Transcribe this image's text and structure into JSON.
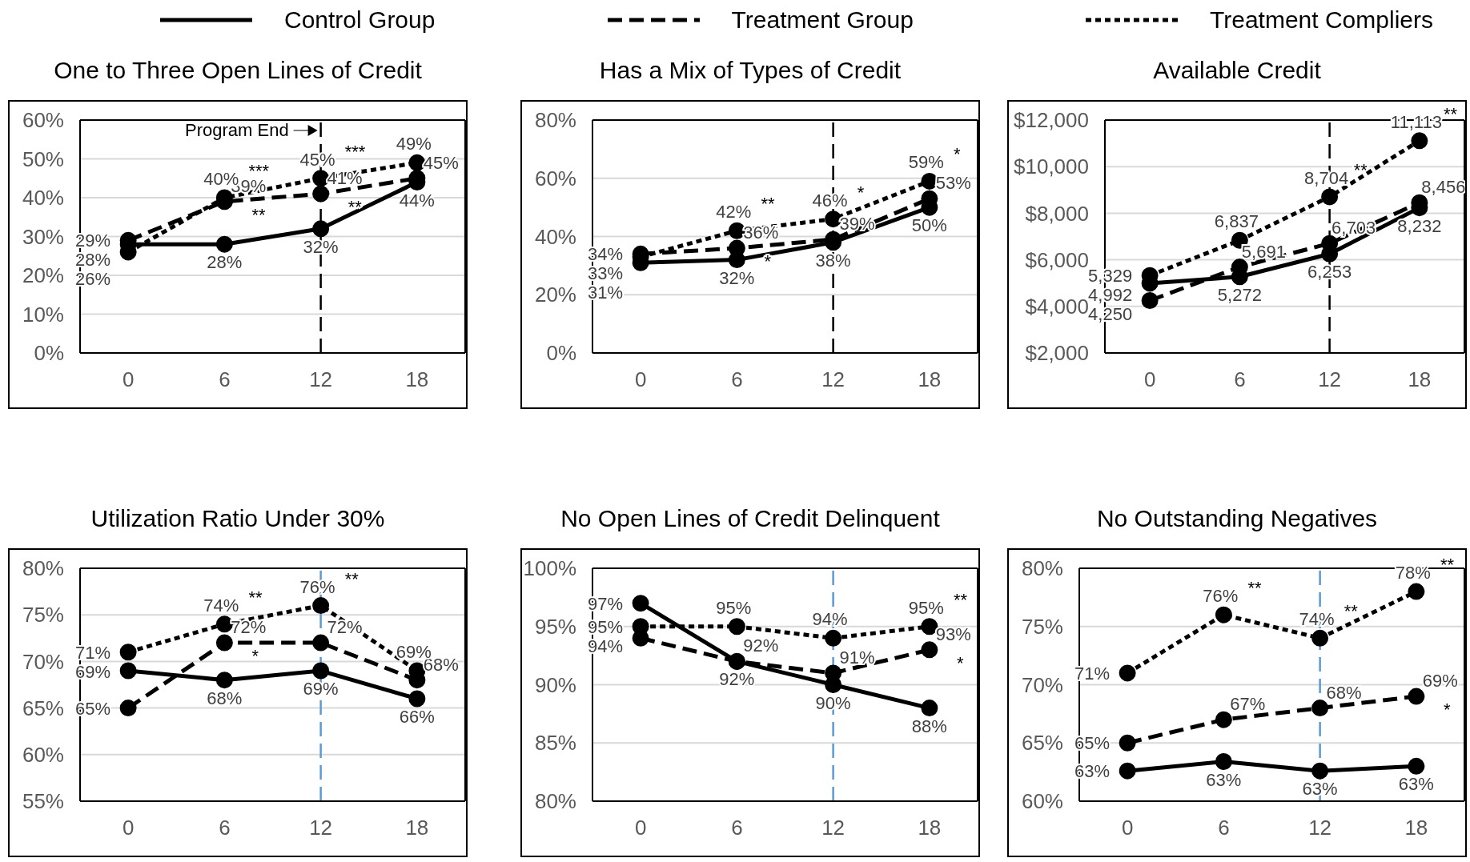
{
  "chart_data": [
    {
      "type": "line",
      "title": "One to Three Open Lines of Credit",
      "x": [
        0,
        6,
        12,
        18
      ],
      "xlim": [
        -3,
        21
      ],
      "xticks": [
        0,
        6,
        12,
        18
      ],
      "ylim": [
        0,
        60
      ],
      "yticks": [
        {
          "value": 0,
          "label": "0%"
        },
        {
          "value": 10,
          "label": "10%"
        },
        {
          "value": 20,
          "label": "20%"
        },
        {
          "value": 30,
          "label": "30%"
        },
        {
          "value": 40,
          "label": "40%"
        },
        {
          "value": 50,
          "label": "50%"
        },
        {
          "value": 60,
          "label": "60%"
        }
      ],
      "grid": "y",
      "marker": "circle",
      "legend": "top",
      "series": [
        {
          "name": "Control Group",
          "color": "#000000",
          "line_style": "solid",
          "values": [
            28,
            28,
            32,
            44
          ],
          "value_labels": [
            "28%",
            "28%",
            "32%",
            "44%"
          ]
        },
        {
          "name": "Treatment Group",
          "color": "#000000",
          "line_style": "dashed",
          "values": [
            29,
            39,
            41,
            45
          ],
          "value_labels": [
            "29%",
            "39%",
            "41%",
            "45%"
          ]
        },
        {
          "name": "Treatment Compliers",
          "color": "#000000",
          "line_style": "dotted",
          "values": [
            26,
            40,
            45,
            49
          ],
          "value_labels": [
            "26%",
            "40%",
            "45%",
            "49%"
          ]
        }
      ],
      "ref_lines": [
        {
          "axis": "x",
          "value": 12,
          "label": "Program End",
          "color": "#000000",
          "line_style": "dashed"
        }
      ],
      "annotations": [
        {
          "text": "***",
          "x": 6,
          "y": 40
        },
        {
          "text": "**",
          "x": 6,
          "y": 39
        },
        {
          "text": "***",
          "x": 12,
          "y": 45
        },
        {
          "text": "**",
          "x": 12,
          "y": 41
        }
      ]
    },
    {
      "type": "line",
      "title": "Has a Mix of Types of Credit",
      "x": [
        0,
        6,
        12,
        18
      ],
      "xlim": [
        -3,
        21
      ],
      "xticks": [
        0,
        6,
        12,
        18
      ],
      "ylim": [
        0,
        80
      ],
      "yticks": [
        {
          "value": 0,
          "label": "0%"
        },
        {
          "value": 20,
          "label": "20%"
        },
        {
          "value": 40,
          "label": "40%"
        },
        {
          "value": 60,
          "label": "60%"
        },
        {
          "value": 80,
          "label": "80%"
        }
      ],
      "grid": "y",
      "marker": "circle",
      "series": [
        {
          "color": "#000000",
          "line_style": "solid",
          "values": [
            31,
            32,
            38,
            50
          ],
          "value_labels": [
            "31%",
            "32%",
            "38%",
            "50%"
          ]
        },
        {
          "color": "#000000",
          "line_style": "dashed",
          "values": [
            34,
            36,
            39,
            53
          ],
          "value_labels": [
            "34%",
            "36%",
            "39%",
            "53%"
          ]
        },
        {
          "color": "#000000",
          "line_style": "dotted",
          "values": [
            33,
            42,
            46,
            59
          ],
          "value_labels": [
            "33%",
            "42%",
            "46%",
            "59%"
          ]
        }
      ],
      "ref_lines": [
        {
          "axis": "x",
          "value": 12,
          "color": "#000000",
          "line_style": "dashed"
        }
      ],
      "annotations": [
        {
          "text": "**",
          "x": 6,
          "y": 42
        },
        {
          "text": "*",
          "x": 6,
          "y": 36
        },
        {
          "text": "*",
          "x": 12,
          "y": 46
        },
        {
          "text": "*",
          "x": 18,
          "y": 59
        }
      ]
    },
    {
      "type": "line",
      "title": "Available Credit",
      "x": [
        0,
        6,
        12,
        18
      ],
      "xlim": [
        -3,
        21
      ],
      "xticks": [
        0,
        6,
        12,
        18
      ],
      "ylim": [
        2000,
        12000
      ],
      "yticks": [
        {
          "value": 2000,
          "label": "$2,000"
        },
        {
          "value": 4000,
          "label": "$4,000"
        },
        {
          "value": 6000,
          "label": "$6,000"
        },
        {
          "value": 8000,
          "label": "$8,000"
        },
        {
          "value": 10000,
          "label": "$10,000"
        },
        {
          "value": 12000,
          "label": "$12,000"
        }
      ],
      "grid": "y",
      "marker": "circle",
      "series": [
        {
          "color": "#000000",
          "line_style": "solid",
          "values": [
            4992,
            5272,
            6253,
            8232
          ],
          "value_labels": [
            "4,992",
            "5,272",
            "6,253",
            "8,232"
          ]
        },
        {
          "color": "#000000",
          "line_style": "dashed",
          "values": [
            4250,
            5691,
            6703,
            8456
          ],
          "value_labels": [
            "4,250",
            "5,691",
            "6,703",
            "8,456"
          ]
        },
        {
          "color": "#000000",
          "line_style": "dotted",
          "values": [
            5329,
            6837,
            8704,
            11113
          ],
          "value_labels": [
            "5,329",
            "6,837",
            "8,704",
            "11,113"
          ]
        }
      ],
      "ref_lines": [
        {
          "axis": "x",
          "value": 12,
          "color": "#000000",
          "line_style": "dashed"
        }
      ],
      "annotations": [
        {
          "text": "**",
          "x": 12,
          "y": 8704
        },
        {
          "text": "**",
          "x": 18,
          "y": 11113
        }
      ]
    },
    {
      "type": "line",
      "title": "Utilization Ratio Under 30%",
      "x": [
        0,
        6,
        12,
        18
      ],
      "xlim": [
        -3,
        21
      ],
      "xticks": [
        0,
        6,
        12,
        18
      ],
      "ylim": [
        55,
        80
      ],
      "yticks": [
        {
          "value": 55,
          "label": "55%"
        },
        {
          "value": 60,
          "label": "60%"
        },
        {
          "value": 65,
          "label": "65%"
        },
        {
          "value": 70,
          "label": "70%"
        },
        {
          "value": 75,
          "label": "75%"
        },
        {
          "value": 80,
          "label": "80%"
        }
      ],
      "grid": "y",
      "marker": "circle",
      "series": [
        {
          "color": "#000000",
          "line_style": "solid",
          "values": [
            69,
            68,
            69,
            66
          ],
          "value_labels": [
            "69%",
            "68%",
            "69%",
            "66%"
          ]
        },
        {
          "color": "#000000",
          "line_style": "dashed",
          "values": [
            65,
            72,
            72,
            68
          ],
          "value_labels": [
            "65%",
            "72%",
            "72%",
            "68%"
          ]
        },
        {
          "color": "#000000",
          "line_style": "dotted",
          "values": [
            71,
            74,
            76,
            69
          ],
          "value_labels": [
            "71%",
            "74%",
            "76%",
            "69%"
          ]
        }
      ],
      "ref_lines": [
        {
          "axis": "x",
          "value": 12,
          "color": "#5b9bd5",
          "line_style": "dashed"
        }
      ],
      "annotations": [
        {
          "text": "**",
          "x": 6,
          "y": 74
        },
        {
          "text": "*",
          "x": 6,
          "y": 72
        },
        {
          "text": "**",
          "x": 12,
          "y": 76
        }
      ]
    },
    {
      "type": "line",
      "title": "No Open Lines of Credit Delinquent",
      "x": [
        0,
        6,
        12,
        18
      ],
      "xlim": [
        -3,
        21
      ],
      "xticks": [
        0,
        6,
        12,
        18
      ],
      "ylim": [
        80,
        100
      ],
      "yticks": [
        {
          "value": 80,
          "label": "80%"
        },
        {
          "value": 85,
          "label": "85%"
        },
        {
          "value": 90,
          "label": "90%"
        },
        {
          "value": 95,
          "label": "95%"
        },
        {
          "value": 100,
          "label": "100%"
        }
      ],
      "grid": "y",
      "marker": "circle",
      "series": [
        {
          "color": "#000000",
          "line_style": "solid",
          "values": [
            97,
            92,
            90,
            88
          ],
          "value_labels": [
            "97%",
            "92%",
            "90%",
            "88%"
          ]
        },
        {
          "color": "#000000",
          "line_style": "dashed",
          "values": [
            94,
            92,
            91,
            93
          ],
          "value_labels": [
            "94%",
            "92%",
            "91%",
            "93%"
          ]
        },
        {
          "color": "#000000",
          "line_style": "dotted",
          "values": [
            95,
            95,
            94,
            95
          ],
          "value_labels": [
            "95%",
            "95%",
            "94%",
            "95%"
          ]
        }
      ],
      "ref_lines": [
        {
          "axis": "x",
          "value": 12,
          "color": "#5b9bd5",
          "line_style": "dashed"
        }
      ],
      "annotations": [
        {
          "text": "**",
          "x": 18,
          "y": 95
        },
        {
          "text": "*",
          "x": 18,
          "y": 93
        }
      ]
    },
    {
      "type": "line",
      "title": "No Outstanding Negatives",
      "x": [
        0,
        6,
        12,
        18
      ],
      "xlim": [
        -3,
        21
      ],
      "xticks": [
        0,
        6,
        12,
        18
      ],
      "ylim": [
        60,
        80
      ],
      "yticks": [
        {
          "value": 60,
          "label": "60%"
        },
        {
          "value": 65,
          "label": "65%"
        },
        {
          "value": 70,
          "label": "70%"
        },
        {
          "value": 75,
          "label": "75%"
        },
        {
          "value": 80,
          "label": "80%"
        }
      ],
      "grid": "y",
      "marker": "circle",
      "series": [
        {
          "color": "#000000",
          "line_style": "solid",
          "values": [
            62.6,
            63.4,
            62.6,
            63.0
          ],
          "value_labels": [
            "63%",
            "63%",
            "63%",
            "63%"
          ]
        },
        {
          "color": "#000000",
          "line_style": "dashed",
          "values": [
            65,
            67,
            68,
            69
          ],
          "value_labels": [
            "65%",
            "67%",
            "68%",
            "69%"
          ]
        },
        {
          "color": "#000000",
          "line_style": "dotted",
          "values": [
            71,
            76,
            74,
            78
          ],
          "value_labels": [
            "71%",
            "76%",
            "74%",
            "78%"
          ]
        }
      ],
      "ref_lines": [
        {
          "axis": "x",
          "value": 12,
          "color": "#5b9bd5",
          "line_style": "dashed"
        }
      ],
      "annotations": [
        {
          "text": "**",
          "x": 6,
          "y": 76
        },
        {
          "text": "**",
          "x": 12,
          "y": 74
        },
        {
          "text": "**",
          "x": 18,
          "y": 78
        },
        {
          "text": "*",
          "x": 18,
          "y": 69
        }
      ]
    }
  ]
}
